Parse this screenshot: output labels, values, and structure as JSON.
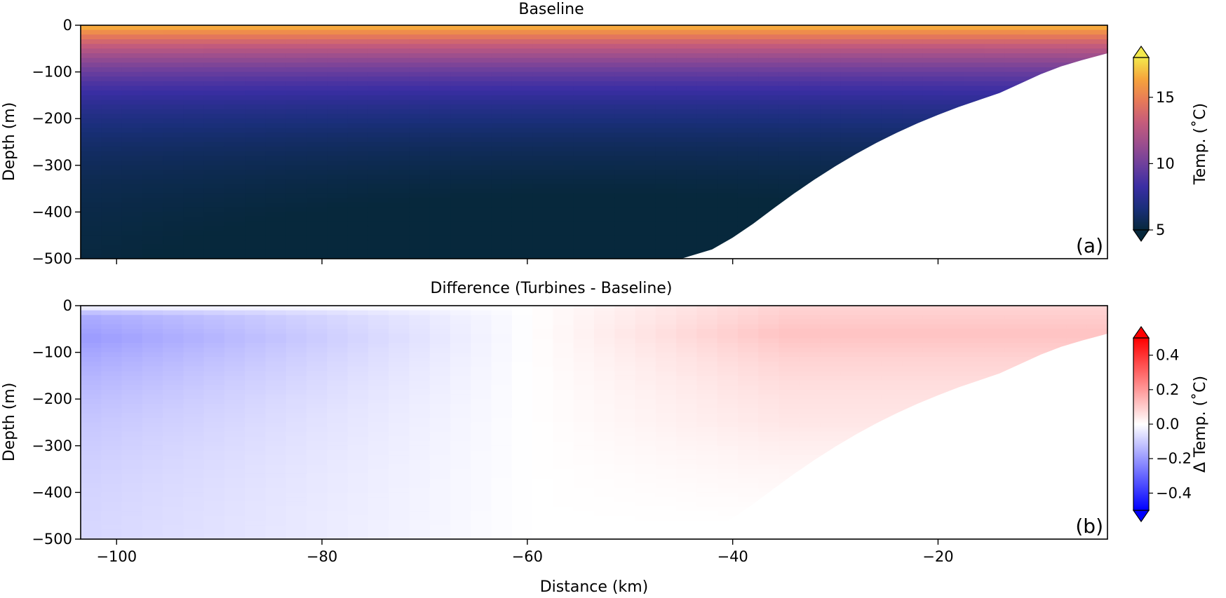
{
  "chart_data": [
    {
      "type": "heatmap",
      "title": "Baseline",
      "panel_label": "(a)",
      "ylabel": "Depth (m)",
      "xlabel": "",
      "xlim": [
        -103.5,
        -3.5
      ],
      "ylim": [
        -500,
        0
      ],
      "x_ticks": [
        -100,
        -80,
        -60,
        -40,
        -20
      ],
      "y_ticks": [
        0,
        -100,
        -200,
        -300,
        -400,
        -500
      ],
      "x_tick_labels_visible": false,
      "colorbar": {
        "label": "Temp. (˚C)",
        "ticks": [
          5,
          10,
          15
        ],
        "range": [
          5,
          18
        ],
        "extend": "both",
        "colormap": "plasma-like",
        "colors": [
          "#07283c",
          "#1a2f7a",
          "#3a2ea3",
          "#6c3f9d",
          "#9c4e8e",
          "#c65c7b",
          "#e77a58",
          "#f6a43c",
          "#f3e94c"
        ]
      },
      "surface_temperature": 17,
      "bottom_temperature": 5,
      "bathymetry_depth_by_distance": {
        "x": [
          -103.5,
          -45,
          -42,
          -40,
          -38,
          -36,
          -34,
          -32,
          -30,
          -28,
          -26,
          -24,
          -22,
          -20,
          -18,
          -16,
          -14,
          -12,
          -10,
          -8,
          -6,
          -4,
          -3.5
        ],
        "depth": [
          -500,
          -500,
          -480,
          -455,
          -425,
          -392,
          -360,
          -330,
          -302,
          -276,
          -252,
          -230,
          -210,
          -192,
          -175,
          -160,
          -145,
          -125,
          -105,
          -88,
          -75,
          -63,
          -60
        ]
      }
    },
    {
      "type": "heatmap",
      "title": "Difference (Turbines - Baseline)",
      "panel_label": "(b)",
      "ylabel": "Depth (m)",
      "xlabel": "Distance (km)",
      "xlim": [
        -103.5,
        -3.5
      ],
      "ylim": [
        -500,
        0
      ],
      "x_ticks": [
        -100,
        -80,
        -60,
        -40,
        -20
      ],
      "y_ticks": [
        0,
        -100,
        -200,
        -300,
        -400,
        -500
      ],
      "colorbar": {
        "label": "Δ Temp. (˚C)",
        "ticks": [
          -0.4,
          -0.2,
          0.0,
          0.2,
          0.4
        ],
        "tick_labels": [
          "−0.4",
          "−0.2",
          "0.0",
          "0.2",
          "0.4"
        ],
        "range": [
          -0.5,
          0.5
        ],
        "extend": "both",
        "colormap": "bwr",
        "colors": [
          "#0000ff",
          "#ffffff",
          "#ff0000"
        ]
      },
      "max_negative_anomaly": -0.2,
      "max_positive_anomaly": 0.12,
      "zero_crossing_distance": -60,
      "bathymetry_depth_by_distance": {
        "x": [
          -103.5,
          -45,
          -42,
          -40,
          -38,
          -36,
          -34,
          -32,
          -30,
          -28,
          -26,
          -24,
          -22,
          -20,
          -18,
          -16,
          -14,
          -12,
          -10,
          -8,
          -6,
          -4,
          -3.5
        ],
        "depth": [
          -500,
          -500,
          -480,
          -455,
          -425,
          -392,
          -360,
          -330,
          -302,
          -276,
          -252,
          -230,
          -210,
          -192,
          -175,
          -160,
          -145,
          -125,
          -105,
          -88,
          -75,
          -63,
          -60
        ]
      }
    }
  ]
}
